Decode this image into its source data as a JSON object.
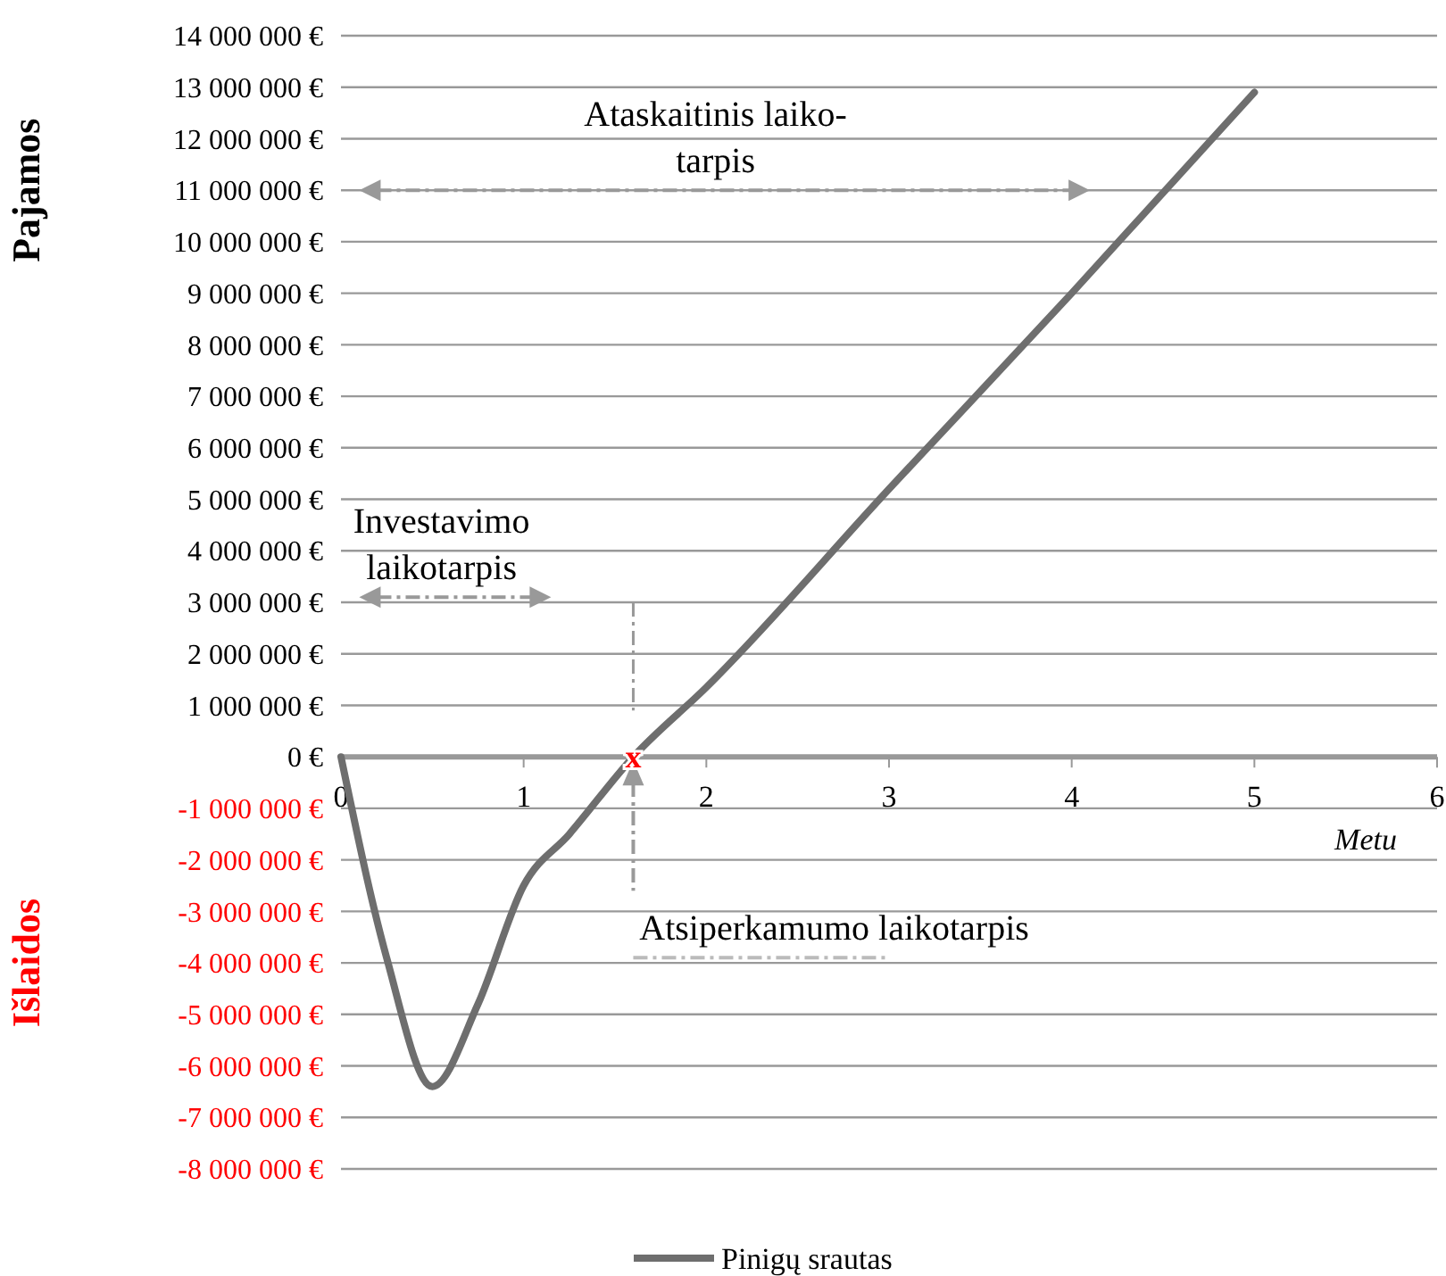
{
  "chart_data": {
    "type": "line",
    "ylabel": "Pajamos",
    "xlabel": "Metu",
    "x": [
      0,
      0.25,
      0.5,
      0.75,
      1,
      1.25,
      1.6,
      2,
      3,
      4,
      5
    ],
    "series": [
      {
        "name": "Pinigų srautas",
        "color": "#6e6e6e",
        "values": [
          0,
          -3900000,
          -6400000,
          -4800000,
          -2500000,
          -1500000,
          0,
          1350000,
          5200000,
          9000000,
          12900000
        ]
      }
    ],
    "xlim": [
      0,
      6
    ],
    "xticks": [
      0,
      1,
      2,
      3,
      4,
      5,
      6
    ],
    "ylim": [
      -8000000,
      14000000
    ],
    "yticks": [
      {
        "value": 14000000,
        "label": "14 000 000 €"
      },
      {
        "value": 13000000,
        "label": "13 000 000 €"
      },
      {
        "value": 12000000,
        "label": "12 000 000 €"
      },
      {
        "value": 11000000,
        "label": "11 000 000 €"
      },
      {
        "value": 10000000,
        "label": "10 000 000 €"
      },
      {
        "value": 9000000,
        "label": "9 000 000 €"
      },
      {
        "value": 8000000,
        "label": "8 000 000 €"
      },
      {
        "value": 7000000,
        "label": "7 000 000 €"
      },
      {
        "value": 6000000,
        "label": "6 000 000 €"
      },
      {
        "value": 5000000,
        "label": "5 000 000 €"
      },
      {
        "value": 4000000,
        "label": "4 000 000 €"
      },
      {
        "value": 3000000,
        "label": "3 000 000 €"
      },
      {
        "value": 2000000,
        "label": "2 000 000 €"
      },
      {
        "value": 1000000,
        "label": "1 000 000 €"
      },
      {
        "value": 0,
        "label": "0 €"
      },
      {
        "value": -1000000,
        "label": "-1 000 000 €"
      },
      {
        "value": -2000000,
        "label": "-2 000 000 €"
      },
      {
        "value": -3000000,
        "label": "-3 000 000 €"
      },
      {
        "value": -4000000,
        "label": "-4 000 000 €"
      },
      {
        "value": -5000000,
        "label": "-5 000 000 €"
      },
      {
        "value": -6000000,
        "label": "-6 000 000 €"
      },
      {
        "value": -7000000,
        "label": "-7 000 000 €"
      },
      {
        "value": -8000000,
        "label": "-8 000 000 €"
      }
    ],
    "grid": "y",
    "legend": "bottom",
    "line_style": "solid",
    "annotations": [
      "Išlaidos",
      "Ataskaitinis laiko-\ntarpis",
      "Investavimo\nlaikotarpis",
      "Atsiperkamumo laikotarpis",
      {
        "text": "x",
        "x": 1.6,
        "y": 0
      }
    ]
  }
}
